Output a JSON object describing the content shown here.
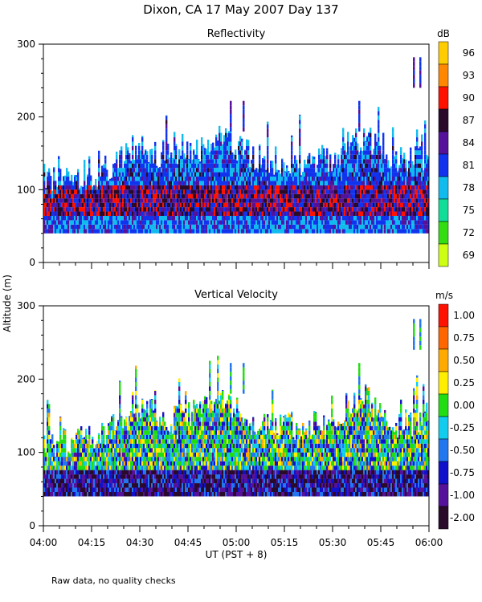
{
  "title": "Dixon, CA 17 May 2007  Day 137",
  "ylabel": "Altitude (m)",
  "xlabel": "UT  (PST + 8)",
  "footnote": "Raw data, no quality checks",
  "time_ticks": [
    "04:00",
    "04:15",
    "04:30",
    "04:45",
    "05:00",
    "05:15",
    "05:30",
    "05:45",
    "06:00"
  ],
  "chart_data": [
    {
      "type": "heatmap",
      "title": "Reflectivity",
      "x_range_minutes": [
        0,
        120
      ],
      "ylim": [
        0,
        300
      ],
      "yticks": [
        0,
        100,
        200,
        300
      ],
      "colorbar": {
        "unit": "dB",
        "labels": [
          "96",
          "93",
          "90",
          "87",
          "84",
          "81",
          "78",
          "75",
          "72",
          "69"
        ],
        "colors": [
          "#ffcc00",
          "#ff8800",
          "#ff1100",
          "#2a0a2a",
          "#55119a",
          "#1133ee",
          "#11bbee",
          "#11dd99",
          "#33dd11",
          "#ccff11"
        ]
      },
      "base_altitude": 40,
      "echo_top_profile": [
        [
          0,
          120
        ],
        [
          5,
          110
        ],
        [
          10,
          115
        ],
        [
          15,
          120
        ],
        [
          20,
          130
        ],
        [
          25,
          150
        ],
        [
          30,
          160
        ],
        [
          35,
          150
        ],
        [
          40,
          145
        ],
        [
          45,
          150
        ],
        [
          50,
          160
        ],
        [
          55,
          175
        ],
        [
          60,
          160
        ],
        [
          65,
          145
        ],
        [
          70,
          140
        ],
        [
          75,
          140
        ],
        [
          80,
          135
        ],
        [
          85,
          140
        ],
        [
          90,
          140
        ],
        [
          95,
          165
        ],
        [
          100,
          175
        ],
        [
          105,
          150
        ],
        [
          110,
          140
        ],
        [
          115,
          140
        ],
        [
          120,
          140
        ]
      ],
      "isolated_tops": [
        [
          58,
          220
        ],
        [
          62,
          220
        ],
        [
          98,
          220
        ],
        [
          115,
          280
        ],
        [
          117,
          280
        ]
      ],
      "core_layer": [
        60,
        100
      ]
    },
    {
      "type": "heatmap",
      "title": "Vertical Velocity",
      "x_range_minutes": [
        0,
        120
      ],
      "ylim": [
        0,
        300
      ],
      "yticks": [
        0,
        100,
        200,
        300
      ],
      "colorbar": {
        "unit": "m/s",
        "labels": [
          "1.00",
          "0.75",
          "0.50",
          "0.25",
          "0.00",
          "-0.25",
          "-0.50",
          "-0.75",
          "-1.00",
          "-2.00"
        ],
        "colors": [
          "#ff1100",
          "#ff6600",
          "#ffaa00",
          "#ffee00",
          "#22dd11",
          "#11ccee",
          "#2277ee",
          "#1111cc",
          "#55119a",
          "#2a0a2a"
        ]
      },
      "base_altitude": 40,
      "echo_top_profile": [
        [
          0,
          120
        ],
        [
          5,
          110
        ],
        [
          10,
          115
        ],
        [
          15,
          120
        ],
        [
          20,
          130
        ],
        [
          25,
          150
        ],
        [
          30,
          160
        ],
        [
          35,
          150
        ],
        [
          40,
          145
        ],
        [
          45,
          150
        ],
        [
          50,
          160
        ],
        [
          55,
          175
        ],
        [
          60,
          160
        ],
        [
          65,
          145
        ],
        [
          70,
          140
        ],
        [
          75,
          140
        ],
        [
          80,
          135
        ],
        [
          85,
          140
        ],
        [
          90,
          140
        ],
        [
          95,
          165
        ],
        [
          100,
          175
        ],
        [
          105,
          150
        ],
        [
          110,
          140
        ],
        [
          115,
          140
        ],
        [
          120,
          140
        ]
      ],
      "isolated_tops": [
        [
          58,
          220
        ],
        [
          62,
          220
        ],
        [
          98,
          220
        ],
        [
          115,
          280
        ],
        [
          117,
          280
        ]
      ],
      "core_layer": [
        40,
        70
      ]
    }
  ]
}
